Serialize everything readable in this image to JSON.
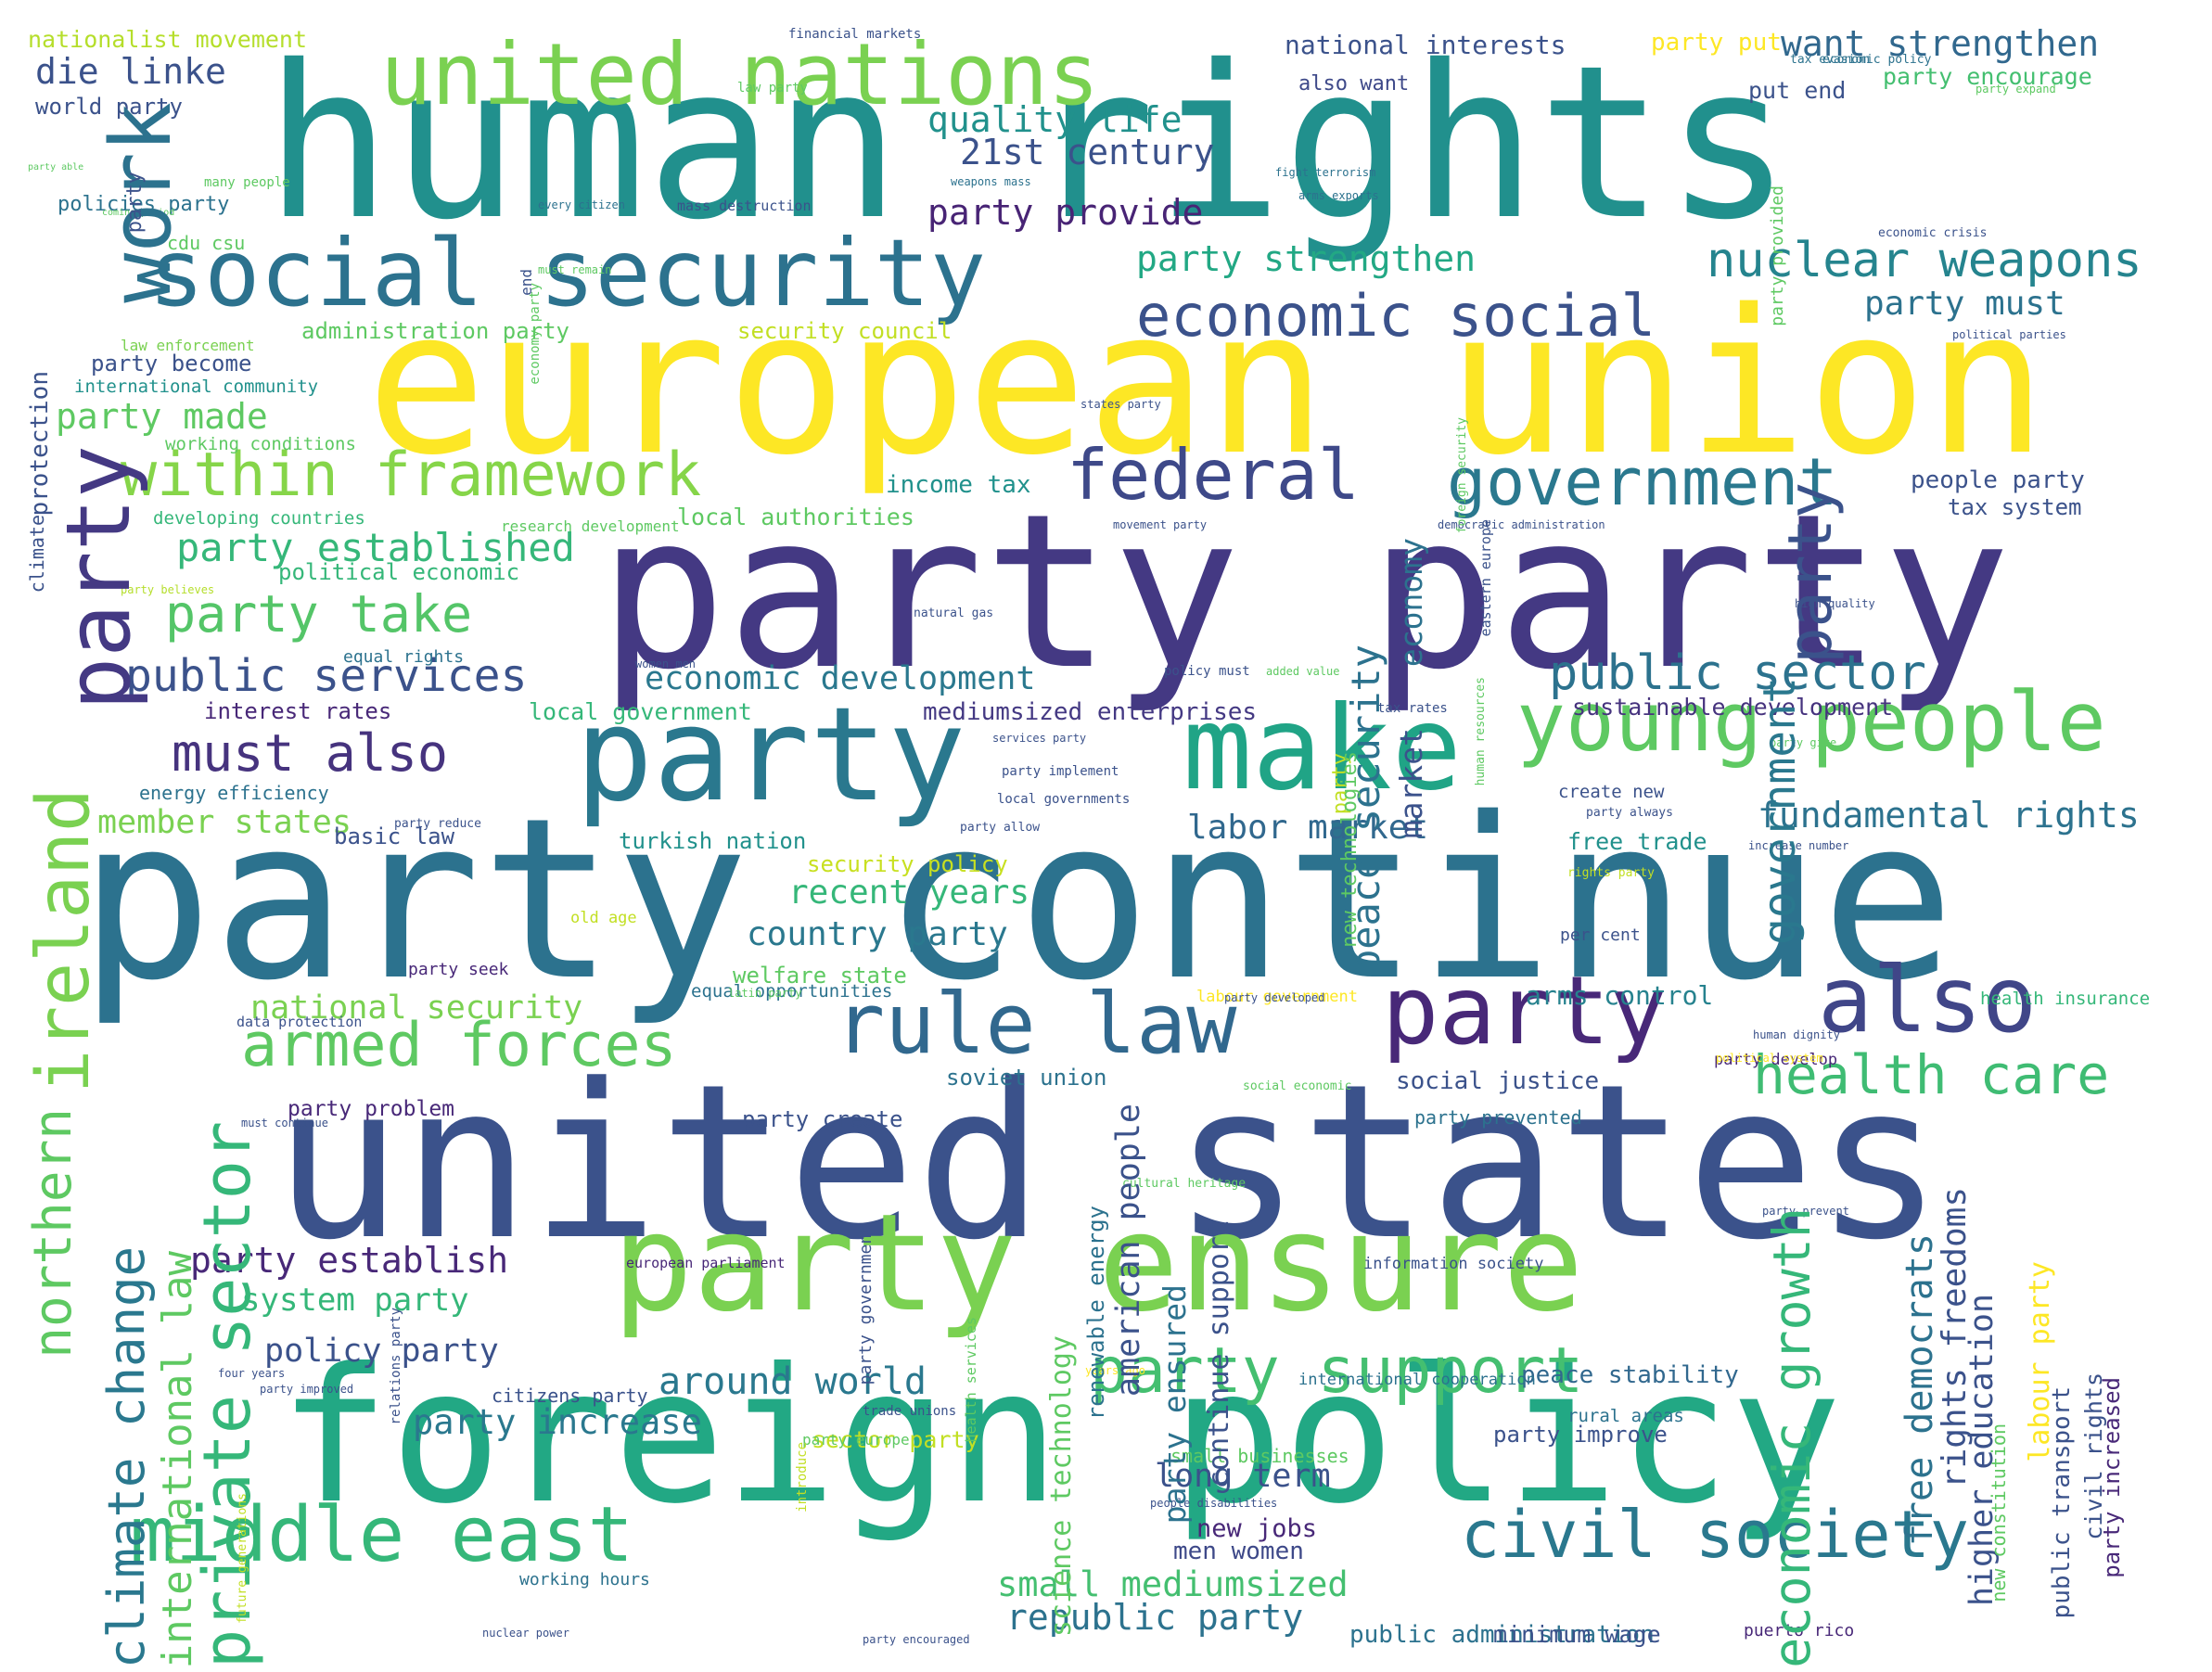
{
  "words": [
    {
      "text": "human rights",
      "c": "#21908d"
    },
    {
      "text": "party continue",
      "c": "#2c728e"
    },
    {
      "text": "european union",
      "c": "#fde725"
    },
    {
      "text": "party party",
      "c": "#443983"
    },
    {
      "text": "united states",
      "c": "#3b528b"
    },
    {
      "text": "foreign policy",
      "c": "#22a884"
    },
    {
      "text": "party ensure",
      "c": "#7ad151"
    },
    {
      "text": "party",
      "c": "#2a788e"
    },
    {
      "text": "make",
      "c": "#20a486"
    },
    {
      "text": "social security",
      "c": "#2c728e"
    },
    {
      "text": "united nations",
      "c": "#7ad151"
    },
    {
      "text": "middle east",
      "c": "#35b779"
    },
    {
      "text": "rule law",
      "c": "#31688e"
    },
    {
      "text": "party",
      "c": "#482878"
    },
    {
      "text": "also",
      "c": "#404688"
    },
    {
      "text": "young people",
      "c": "#5ec962"
    },
    {
      "text": "civil society",
      "c": "#2a788e"
    },
    {
      "text": "federal",
      "c": "#3e4989"
    },
    {
      "text": "government",
      "c": "#2a788e"
    },
    {
      "text": "within framework",
      "c": "#86d549"
    },
    {
      "text": "armed forces",
      "c": "#5ec962"
    },
    {
      "text": "party support",
      "c": "#44bf70"
    },
    {
      "text": "health care",
      "c": "#3fbc73"
    },
    {
      "text": "must also",
      "c": "#46337e"
    },
    {
      "text": "party take",
      "c": "#54c568"
    },
    {
      "text": "economic social",
      "c": "#3b528b"
    },
    {
      "text": "public services",
      "c": "#3b528b"
    },
    {
      "text": "public sector",
      "c": "#2c728e"
    },
    {
      "text": "nuclear weapons",
      "c": "#25848e"
    },
    {
      "text": "party established",
      "c": "#35b779"
    },
    {
      "text": "party made",
      "c": "#5ec962"
    },
    {
      "text": "quality life",
      "c": "#21918c"
    },
    {
      "text": "21st century",
      "c": "#3b528b"
    },
    {
      "text": "party provide",
      "c": "#482475"
    },
    {
      "text": "party strengthen",
      "c": "#22a884"
    },
    {
      "text": "party must",
      "c": "#2c728e"
    },
    {
      "text": "want strengthen",
      "c": "#31688e"
    },
    {
      "text": "die linke",
      "c": "#3b528b"
    },
    {
      "text": "economic development",
      "c": "#2a788e"
    },
    {
      "text": "fundamental rights",
      "c": "#2c728e"
    },
    {
      "text": "labor market",
      "c": "#31688e"
    },
    {
      "text": "member states",
      "c": "#7ad151"
    },
    {
      "text": "party establish",
      "c": "#482878"
    },
    {
      "text": "recent years",
      "c": "#35b779"
    },
    {
      "text": "country party",
      "c": "#2a788e"
    },
    {
      "text": "national security",
      "c": "#7ad151"
    },
    {
      "text": "system party",
      "c": "#35b779"
    },
    {
      "text": "policy party",
      "c": "#3b528b"
    },
    {
      "text": "around world",
      "c": "#2a788e"
    },
    {
      "text": "party increase",
      "c": "#2a788e"
    },
    {
      "text": "long term",
      "c": "#3b528b"
    },
    {
      "text": "small mediumsized",
      "c": "#44bf70"
    },
    {
      "text": "republic party",
      "c": "#2c728e"
    },
    {
      "text": "social justice",
      "c": "#3b528b"
    },
    {
      "text": "arms control",
      "c": "#26828e"
    },
    {
      "text": "peace stability",
      "c": "#31688e"
    },
    {
      "text": "new jobs",
      "c": "#482878"
    },
    {
      "text": "men women",
      "c": "#3e4989"
    },
    {
      "text": "party improve",
      "c": "#3b528b"
    },
    {
      "text": "income tax",
      "c": "#21918c"
    },
    {
      "text": "local authorities",
      "c": "#5ec962"
    },
    {
      "text": "political economic",
      "c": "#35b779"
    },
    {
      "text": "interest rates",
      "c": "#482878"
    },
    {
      "text": "local government",
      "c": "#35b779"
    },
    {
      "text": "mediumsized enterprises",
      "c": "#443983"
    },
    {
      "text": "sustainable development",
      "c": "#46337e"
    },
    {
      "text": "people party",
      "c": "#3b528b"
    },
    {
      "text": "tax system",
      "c": "#3b528b"
    },
    {
      "text": "nationalist movement",
      "c": "#b5de2b"
    },
    {
      "text": "national interests",
      "c": "#3b528b"
    },
    {
      "text": "party put",
      "c": "#fde725"
    },
    {
      "text": "party encourage",
      "c": "#44bf70"
    },
    {
      "text": "put end",
      "c": "#3b528b"
    },
    {
      "text": "also want",
      "c": "#3e4989"
    },
    {
      "text": "world party",
      "c": "#3b528b"
    },
    {
      "text": "policies party",
      "c": "#2c728e"
    },
    {
      "text": "cdu csu",
      "c": "#5ec962"
    },
    {
      "text": "administration party",
      "c": "#5ec962"
    },
    {
      "text": "security council",
      "c": "#c2df23"
    },
    {
      "text": "party become",
      "c": "#3b528b"
    },
    {
      "text": "international community",
      "c": "#21918c"
    },
    {
      "text": "working conditions",
      "c": "#5ec962"
    },
    {
      "text": "developing countries",
      "c": "#35b779"
    },
    {
      "text": "equal rights",
      "c": "#2c728e"
    },
    {
      "text": "energy efficiency",
      "c": "#2c728e"
    },
    {
      "text": "basic law",
      "c": "#3b528b"
    },
    {
      "text": "security policy",
      "c": "#c8e020"
    },
    {
      "text": "turkish nation",
      "c": "#21918c"
    },
    {
      "text": "welfare state",
      "c": "#5ec962"
    },
    {
      "text": "equal opportunities",
      "c": "#2c728e"
    },
    {
      "text": "soviet union",
      "c": "#2c728e"
    },
    {
      "text": "party create",
      "c": "#3b528b"
    },
    {
      "text": "party problem",
      "c": "#482878"
    },
    {
      "text": "citizens party",
      "c": "#3b528b"
    },
    {
      "text": "sector party",
      "c": "#c2df23"
    },
    {
      "text": "public administration",
      "c": "#2c728e"
    },
    {
      "text": "minimum wage",
      "c": "#3b528b"
    },
    {
      "text": "free trade",
      "c": "#21918c"
    },
    {
      "text": "create new",
      "c": "#3b528b"
    },
    {
      "text": "party prevented",
      "c": "#2c728e"
    },
    {
      "text": "health insurance",
      "c": "#35b779"
    },
    {
      "text": "party develop",
      "c": "#482878"
    },
    {
      "text": "small businesses",
      "c": "#5ec962"
    },
    {
      "text": "rural areas",
      "c": "#2c728e"
    },
    {
      "text": "puerto rico",
      "c": "#482878"
    },
    {
      "text": "working hours",
      "c": "#2c728e"
    },
    {
      "text": "international cooperation",
      "c": "#2c728e"
    },
    {
      "text": "information society",
      "c": "#3b528b"
    },
    {
      "text": "per cent",
      "c": "#3b528b"
    },
    {
      "text": "party seek",
      "c": "#482878"
    },
    {
      "text": "labour government",
      "c": "#fde725"
    },
    {
      "text": "financial markets",
      "c": "#3b528b"
    },
    {
      "text": "tax evasion",
      "c": "#2c728e"
    },
    {
      "text": "economic policy",
      "c": "#2c728e"
    },
    {
      "text": "law party",
      "c": "#5ec962"
    },
    {
      "text": "party expand",
      "c": "#5ec962"
    },
    {
      "text": "weapons mass",
      "c": "#2c728e"
    },
    {
      "text": "fight terrorism",
      "c": "#2c728e"
    },
    {
      "text": "arms exports",
      "c": "#2c728e"
    },
    {
      "text": "every citizen",
      "c": "#2c728e"
    },
    {
      "text": "mass destruction",
      "c": "#3b528b"
    },
    {
      "text": "must remain",
      "c": "#5ec962"
    },
    {
      "text": "economic crisis",
      "c": "#3b528b"
    },
    {
      "text": "political parties",
      "c": "#3b528b"
    },
    {
      "text": "law enforcement",
      "c": "#7ad151"
    },
    {
      "text": "states party",
      "c": "#3b528b"
    },
    {
      "text": "research development",
      "c": "#5ec962"
    },
    {
      "text": "movement party",
      "c": "#3b528b"
    },
    {
      "text": "democratic administration",
      "c": "#3b528b"
    },
    {
      "text": "party believes",
      "c": "#b5de2b"
    },
    {
      "text": "natural gas",
      "c": "#3b528b"
    },
    {
      "text": "high quality",
      "c": "#3b528b"
    },
    {
      "text": "women men",
      "c": "#3b528b"
    },
    {
      "text": "policy must",
      "c": "#3b528b"
    },
    {
      "text": "added value",
      "c": "#5ec962"
    },
    {
      "text": "tax rates",
      "c": "#3b528b"
    },
    {
      "text": "services party",
      "c": "#3b528b"
    },
    {
      "text": "party implement",
      "c": "#3b528b"
    },
    {
      "text": "party give",
      "c": "#5ec962"
    },
    {
      "text": "local governments",
      "c": "#3b528b"
    },
    {
      "text": "party allow",
      "c": "#3b528b"
    },
    {
      "text": "party reduce",
      "c": "#3b528b"
    },
    {
      "text": "party always",
      "c": "#3b528b"
    },
    {
      "text": "increase number",
      "c": "#3b528b"
    },
    {
      "text": "old age",
      "c": "#c2df23"
    },
    {
      "text": "rights party",
      "c": "#c2df23"
    },
    {
      "text": "latin party",
      "c": "#5ec962"
    },
    {
      "text": "data protection",
      "c": "#3b528b"
    },
    {
      "text": "party developed",
      "c": "#3b528b"
    },
    {
      "text": "human dignity",
      "c": "#3b528b"
    },
    {
      "text": "political system",
      "c": "#fde725"
    },
    {
      "text": "social economic",
      "c": "#5ec962"
    },
    {
      "text": "must continue",
      "c": "#3b528b"
    },
    {
      "text": "cultural heritage",
      "c": "#5ec962"
    },
    {
      "text": "european parliament",
      "c": "#482878"
    },
    {
      "text": "four years",
      "c": "#3b528b"
    },
    {
      "text": "party prevent",
      "c": "#3b528b"
    },
    {
      "text": "years ago",
      "c": "#fde725"
    },
    {
      "text": "party improved",
      "c": "#3b528b"
    },
    {
      "text": "trade unions",
      "c": "#3b528b"
    },
    {
      "text": "party europe",
      "c": "#5ec962"
    },
    {
      "text": "people disabilities",
      "c": "#3b528b"
    },
    {
      "text": "nuclear power",
      "c": "#3b528b"
    },
    {
      "text": "party encouraged",
      "c": "#3b528b"
    },
    {
      "text": "many people",
      "c": "#5ec962"
    },
    {
      "text": "coming period",
      "c": "#5ec962"
    },
    {
      "text": "party able",
      "c": "#5ec962"
    },
    {
      "text": "work",
      "c": "#2c728e"
    },
    {
      "text": "party",
      "c": "#443983"
    },
    {
      "text": "ireland",
      "c": "#7ad151"
    },
    {
      "text": "northern",
      "c": "#5ec962"
    },
    {
      "text": "climate change",
      "c": "#2a788e"
    },
    {
      "text": "international law",
      "c": "#5ec962"
    },
    {
      "text": "private sector",
      "c": "#35b779"
    },
    {
      "text": "party",
      "c": "#3b528b"
    },
    {
      "text": "government",
      "c": "#2a788e"
    },
    {
      "text": "economic growth",
      "c": "#35b779"
    },
    {
      "text": "free democrats",
      "c": "#2c728e"
    },
    {
      "text": "rights freedoms",
      "c": "#3b528b"
    },
    {
      "text": "higher education",
      "c": "#3b528b"
    },
    {
      "text": "labour party",
      "c": "#fde725"
    },
    {
      "text": "new constitution",
      "c": "#5ec962"
    },
    {
      "text": "public transport",
      "c": "#3b528b"
    },
    {
      "text": "civil rights",
      "c": "#3b528b"
    },
    {
      "text": "party increased",
      "c": "#482878"
    },
    {
      "text": "peace security",
      "c": "#2c728e"
    },
    {
      "text": "economy",
      "c": "#2c728e"
    },
    {
      "text": "market",
      "c": "#3b528b"
    },
    {
      "text": "american people",
      "c": "#3b528b"
    },
    {
      "text": "party ensured",
      "c": "#2c728e"
    },
    {
      "text": "continue support",
      "c": "#3b528b"
    },
    {
      "text": "renewable energy",
      "c": "#2c728e"
    },
    {
      "text": "science technology",
      "c": "#5ec962"
    },
    {
      "text": "health services",
      "c": "#5ec962"
    },
    {
      "text": "relations party",
      "c": "#3b528b"
    },
    {
      "text": "party government",
      "c": "#3b528b"
    },
    {
      "text": "introduce",
      "c": "#c2df23"
    },
    {
      "text": "party",
      "c": "#c2df23"
    },
    {
      "text": "new technologies",
      "c": "#5ec962"
    },
    {
      "text": "eastern europe",
      "c": "#3b528b"
    },
    {
      "text": "human resources",
      "c": "#5ec962"
    },
    {
      "text": "foreign security",
      "c": "#5ec962"
    },
    {
      "text": "economy party",
      "c": "#5ec962"
    },
    {
      "text": "end",
      "c": "#3b528b"
    },
    {
      "text": "party",
      "c": "#3b528b"
    },
    {
      "text": "protection",
      "c": "#3b528b"
    },
    {
      "text": "climate",
      "c": "#3b528b"
    },
    {
      "text": "party provided",
      "c": "#5ec962"
    },
    {
      "text": "future generations",
      "c": "#c2df23"
    }
  ]
}
